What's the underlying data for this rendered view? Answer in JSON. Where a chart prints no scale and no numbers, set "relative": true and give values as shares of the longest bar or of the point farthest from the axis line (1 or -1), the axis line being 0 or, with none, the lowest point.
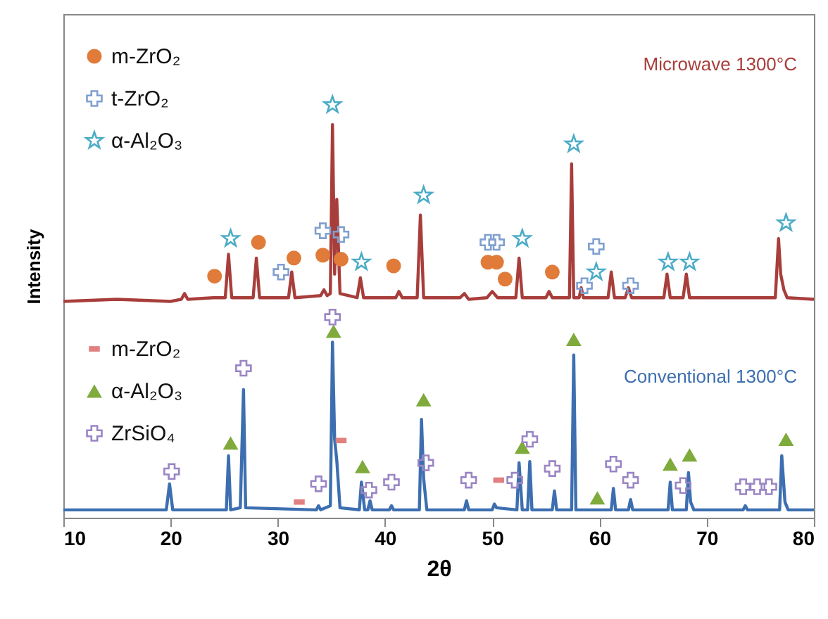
{
  "chart_data": {
    "type": "line",
    "relative": true,
    "xlabel": "2θ",
    "ylabel": "Intensity",
    "xlim": [
      10,
      80
    ],
    "xticks": [
      10,
      20,
      30,
      40,
      50,
      60,
      70,
      80
    ],
    "grid": false,
    "legend": "top left",
    "line_style": "solid",
    "series": [
      {
        "name": "Microwave 1300°C",
        "color": "#a83e3b",
        "x": [
          10,
          15,
          20,
          21,
          21.3,
          21.6,
          24,
          25.1,
          25.4,
          25.7,
          27.7,
          28,
          28.3,
          31,
          31.3,
          31.6,
          34,
          34.3,
          34.6,
          34.9,
          35.1,
          35.3,
          35.5,
          35.8,
          37.4,
          37.7,
          38,
          41,
          41.3,
          41.6,
          43,
          43.3,
          43.6,
          47,
          47.4,
          47.8,
          49.5,
          50,
          50.5,
          52.2,
          52.5,
          52.8,
          55,
          55.3,
          55.6,
          57.2,
          57.4,
          57.6,
          58.1,
          58.3,
          58.5,
          60.8,
          61.1,
          61.4,
          62.4,
          62.7,
          63,
          66,
          66.3,
          66.6,
          67.8,
          68.1,
          68.4,
          76.4,
          76.7,
          76.9,
          77.2,
          77.5,
          80
        ],
        "values": [
          0.524,
          0.529,
          0.524,
          0.529,
          0.543,
          0.529,
          0.533,
          0.533,
          0.638,
          0.533,
          0.533,
          0.629,
          0.533,
          0.533,
          0.595,
          0.533,
          0.538,
          0.552,
          0.538,
          0.543,
          0.952,
          0.59,
          0.771,
          0.543,
          0.533,
          0.581,
          0.533,
          0.533,
          0.548,
          0.533,
          0.533,
          0.733,
          0.533,
          0.533,
          0.543,
          0.529,
          0.533,
          0.548,
          0.533,
          0.533,
          0.629,
          0.533,
          0.533,
          0.548,
          0.533,
          0.533,
          0.857,
          0.533,
          0.533,
          0.557,
          0.533,
          0.533,
          0.595,
          0.533,
          0.533,
          0.557,
          0.533,
          0.533,
          0.59,
          0.533,
          0.533,
          0.59,
          0.533,
          0.533,
          0.676,
          0.59,
          0.552,
          0.533,
          0.529
        ]
      },
      {
        "name": "m-ZrO₂",
        "type": "scatter",
        "marker": "circle",
        "color": "#e07b39",
        "x": [
          24.1,
          28.2,
          31.5,
          34.2,
          35.9,
          40.8,
          49.6,
          50.4,
          51.2,
          55.6
        ],
        "values": [
          0.585,
          0.667,
          0.629,
          0.636,
          0.626,
          0.61,
          0.619,
          0.619,
          0.578,
          0.595
        ]
      },
      {
        "name": "t-ZrO₂",
        "type": "scatter",
        "marker": "cross",
        "color": "#7f9fd0",
        "x": [
          30.3,
          34.2,
          35.9,
          49.6,
          50.4,
          59.7,
          58.6,
          62.9
        ],
        "values": [
          0.595,
          0.695,
          0.686,
          0.667,
          0.667,
          0.657,
          0.562,
          0.562
        ]
      },
      {
        "name": "α-Al₂O₃",
        "type": "scatter",
        "marker": "star",
        "color": "#4bacc6",
        "x": [
          35.1,
          25.6,
          37.8,
          43.6,
          57.6,
          52.8,
          59.7,
          66.4,
          68.4,
          77.4
        ],
        "values": [
          1.0,
          0.676,
          0.619,
          0.781,
          0.905,
          0.676,
          0.595,
          0.619,
          0.619,
          0.714
        ]
      },
      {
        "name": "Conventional 1300°C",
        "color": "#3d6fb0",
        "x": [
          10,
          19.6,
          19.9,
          20.2,
          25.2,
          25.4,
          25.6,
          26.5,
          26.8,
          27.0,
          33.6,
          33.8,
          34.0,
          34.9,
          35.1,
          35.3,
          35.5,
          35.8,
          37.6,
          37.8,
          38.1,
          38.4,
          38.6,
          38.8,
          40.4,
          40.6,
          40.8,
          43.2,
          43.4,
          43.6,
          43.9,
          47.4,
          47.6,
          47.8,
          50,
          50.2,
          50.4,
          52.3,
          52.5,
          52.8,
          53.3,
          53.5,
          53.7,
          55.6,
          55.8,
          56,
          57.4,
          57.6,
          57.8,
          61.1,
          61.3,
          61.5,
          62.7,
          62.9,
          63.1,
          66.4,
          66.6,
          66.8,
          68.1,
          68.3,
          68.5,
          68.8,
          73.4,
          73.6,
          73.8,
          76.8,
          77.0,
          77.3,
          77.6,
          80
        ],
        "values": [
          0.019,
          0.019,
          0.082,
          0.019,
          0.019,
          0.15,
          0.019,
          0.024,
          0.31,
          0.024,
          0.019,
          0.029,
          0.019,
          0.029,
          0.425,
          0.19,
          0.139,
          0.024,
          0.019,
          0.086,
          0.019,
          0.019,
          0.041,
          0.019,
          0.019,
          0.029,
          0.019,
          0.019,
          0.238,
          0.095,
          0.019,
          0.019,
          0.041,
          0.019,
          0.019,
          0.033,
          0.024,
          0.019,
          0.133,
          0.019,
          0.019,
          0.136,
          0.019,
          0.019,
          0.065,
          0.019,
          0.019,
          0.394,
          0.019,
          0.019,
          0.071,
          0.019,
          0.019,
          0.044,
          0.019,
          0.019,
          0.086,
          0.019,
          0.019,
          0.109,
          0.038,
          0.019,
          0.019,
          0.029,
          0.019,
          0.019,
          0.15,
          0.038,
          0.019,
          0.019
        ]
      },
      {
        "name": "m-ZrO₂",
        "type": "scatter",
        "marker": "square",
        "color": "#e08080",
        "x": [
          32.0,
          35.9,
          50.6
        ],
        "values": [
          0.038,
          0.187,
          0.091
        ]
      },
      {
        "name": "α-Al₂O₃",
        "type": "scatter",
        "marker": "triangle",
        "color": "#7faa3c",
        "x": [
          35.2,
          25.6,
          37.9,
          43.6,
          57.6,
          52.8,
          59.8,
          66.6,
          68.4,
          77.4
        ],
        "values": [
          0.452,
          0.181,
          0.124,
          0.286,
          0.432,
          0.171,
          0.048,
          0.13,
          0.152,
          0.19
        ]
      },
      {
        "name": "ZrSiO₄",
        "type": "scatter",
        "marker": "cross",
        "color": "#9a85c4",
        "x": [
          20.1,
          26.8,
          33.8,
          35.1,
          38.5,
          40.6,
          43.8,
          47.8,
          53.5,
          55.6,
          52.1,
          61.3,
          62.9,
          67.8,
          73.4,
          74.7,
          75.8
        ],
        "values": [
          0.112,
          0.362,
          0.082,
          0.486,
          0.067,
          0.086,
          0.133,
          0.091,
          0.19,
          0.119,
          0.091,
          0.13,
          0.091,
          0.078,
          0.075,
          0.075,
          0.075
        ]
      }
    ]
  }
}
